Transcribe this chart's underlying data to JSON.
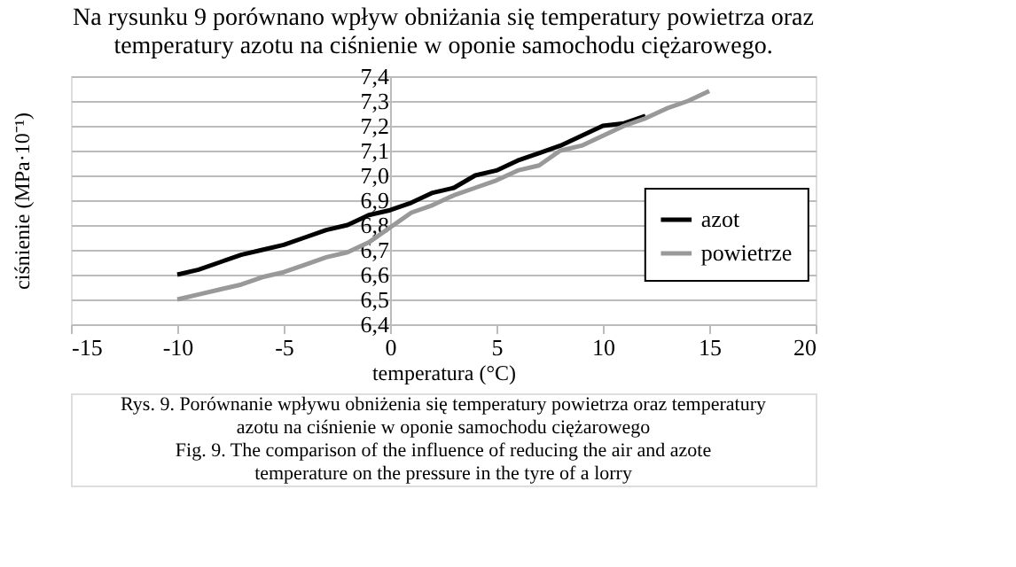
{
  "chart_data": {
    "type": "line",
    "title": "Na rysunku 9 porównano wpływ obniżania się temperatury powietrza oraz temperatury azotu na ciśnienie w oponie samochodu ciężarowego.",
    "xlabel": "temperatura (°C)",
    "ylabel": "ciśnienie (MPa·10⁻¹)",
    "series": [
      {
        "name": "azot",
        "color": "#000000",
        "x": [
          -10,
          -9,
          -8,
          -7,
          -6,
          -5,
          -4,
          -3,
          -2,
          -1,
          0,
          1,
          2,
          3,
          4,
          5,
          6,
          7,
          8,
          9,
          10,
          11,
          12
        ],
        "values": [
          6.6,
          6.62,
          6.65,
          6.68,
          6.7,
          6.72,
          6.75,
          6.78,
          6.8,
          6.84,
          6.86,
          6.89,
          6.93,
          6.95,
          7.0,
          7.02,
          7.06,
          7.09,
          7.12,
          7.16,
          7.2,
          7.21,
          7.24
        ]
      },
      {
        "name": "powietrze",
        "color": "#999999",
        "x": [
          -10,
          -9,
          -8,
          -7,
          -6,
          -5,
          -4,
          -3,
          -2,
          -1,
          0,
          1,
          2,
          3,
          4,
          5,
          6,
          7,
          8,
          9,
          10,
          11,
          12,
          13,
          14,
          15
        ],
        "values": [
          6.5,
          6.52,
          6.54,
          6.56,
          6.59,
          6.61,
          6.64,
          6.67,
          6.69,
          6.73,
          6.79,
          6.85,
          6.88,
          6.92,
          6.95,
          6.98,
          7.02,
          7.04,
          7.1,
          7.12,
          7.16,
          7.2,
          7.23,
          7.27,
          7.3,
          7.34
        ]
      }
    ],
    "xlim": [
      -15,
      20
    ],
    "xticks": [
      -15,
      -10,
      -5,
      0,
      5,
      10,
      15,
      20
    ],
    "ylim": [
      6.4,
      7.4
    ],
    "yticks": [
      {
        "value": 6.4,
        "label": "6,4"
      },
      {
        "value": 6.5,
        "label": "6,5"
      },
      {
        "value": 6.6,
        "label": "6,6"
      },
      {
        "value": 6.7,
        "label": "6,7"
      },
      {
        "value": 6.8,
        "label": "6,8"
      },
      {
        "value": 6.9,
        "label": "6,9"
      },
      {
        "value": 7.0,
        "label": "7,0"
      },
      {
        "value": 7.1,
        "label": "7,1"
      },
      {
        "value": 7.2,
        "label": "7,2"
      },
      {
        "value": 7.3,
        "label": "7,3"
      },
      {
        "value": 7.4,
        "label": "7,4"
      }
    ],
    "grid": "y",
    "legend": "right",
    "marker": "none",
    "line_style": "solid",
    "annotations": [
      "Rys. 9. Porównanie wpływu obniżenia się temperatury powietrza oraz temperatury azotu na ciśnienie w oponie samochodu ciężarowego",
      "Fig. 9. The comparison of the influence of reducing the air and azote temperature on the pressure in the tyre of a lorry"
    ]
  }
}
